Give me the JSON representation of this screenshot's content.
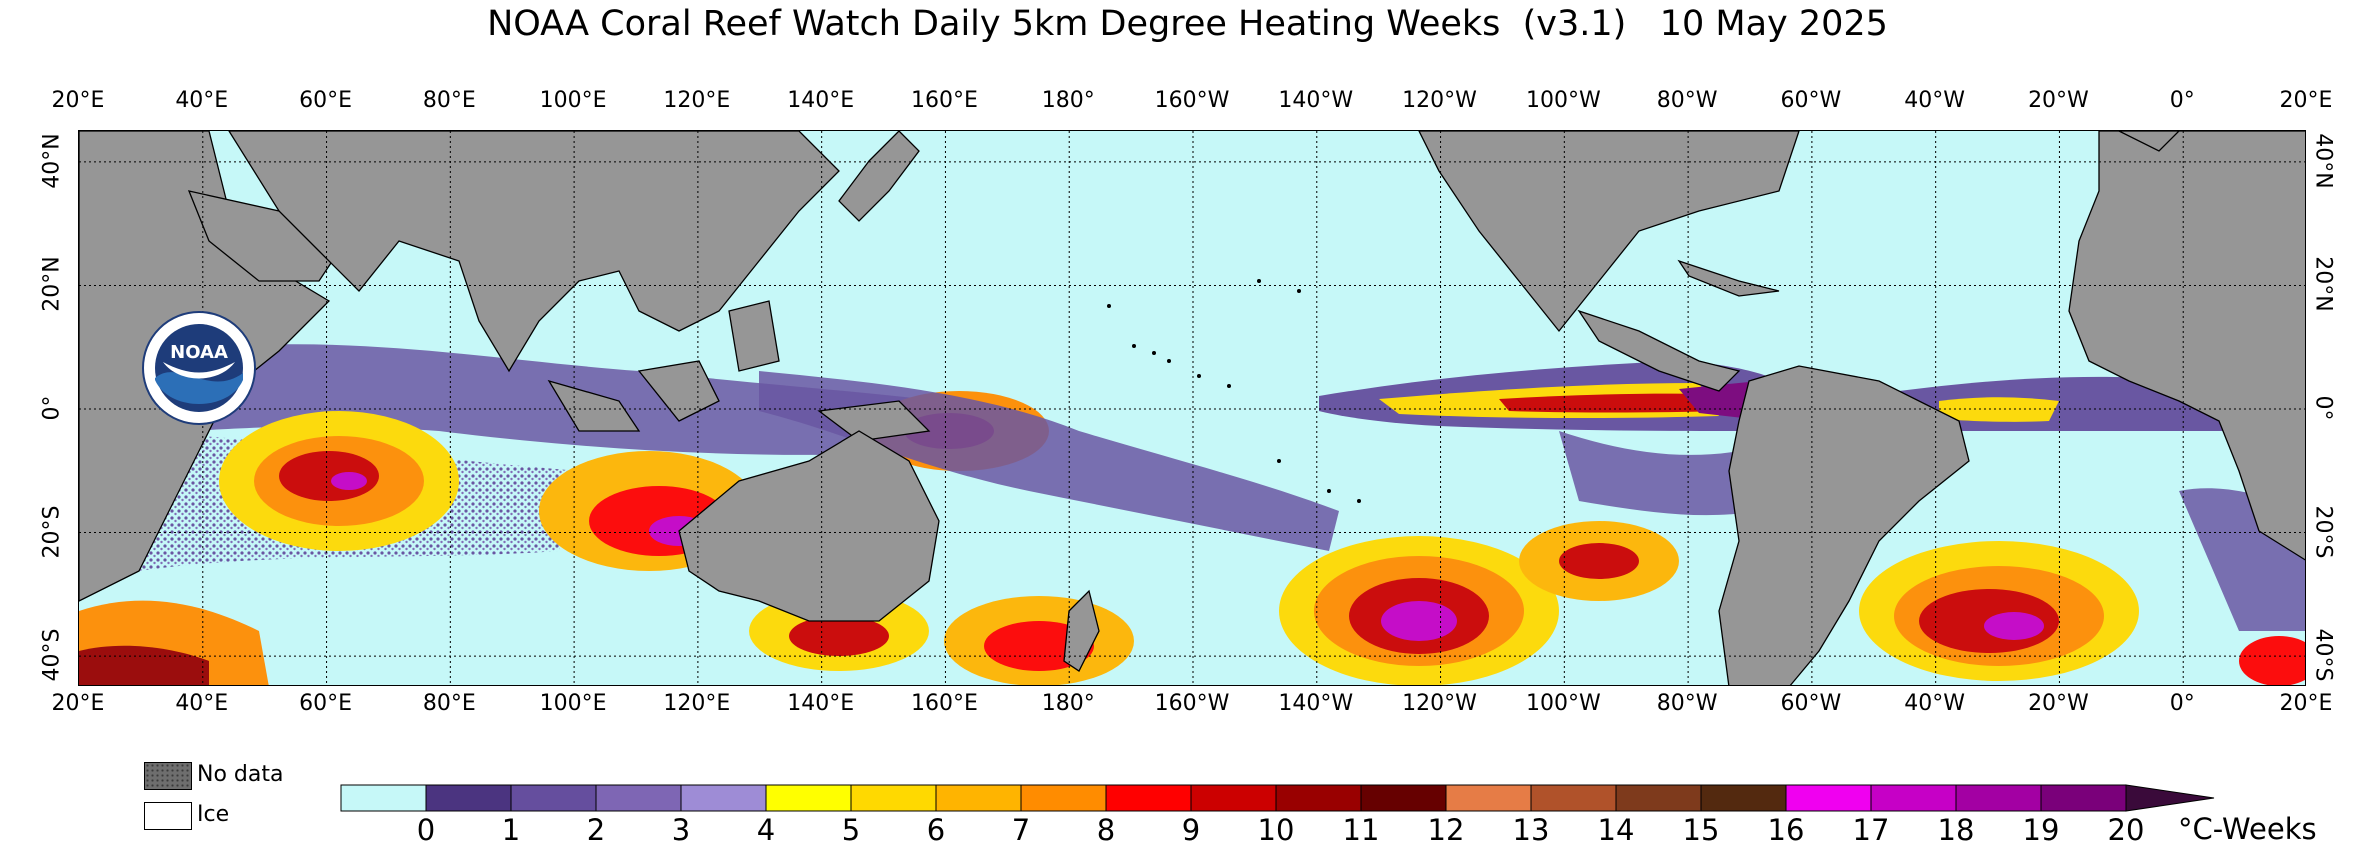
{
  "title": "NOAA Coral Reef Watch Daily 5km Degree Heating Weeks  (v3.1)   10 May 2025",
  "map": {
    "longitude_labels": [
      "20°E",
      "40°E",
      "60°E",
      "80°E",
      "100°E",
      "120°E",
      "140°E",
      "160°E",
      "180°",
      "160°W",
      "140°W",
      "120°W",
      "100°W",
      "80°W",
      "60°W",
      "40°W",
      "20°W",
      "0°",
      "20°E"
    ],
    "latitude_labels": [
      "40°N",
      "20°N",
      "0°",
      "20°S",
      "40°S"
    ],
    "extent": {
      "lon_start_east": 20,
      "lon_span_deg": 360,
      "lat_north": 45,
      "lat_south": -45
    },
    "colors": {
      "land": "#969696",
      "ocean_zero": "#c6f8f8",
      "grid": "#000000"
    }
  },
  "logo": {
    "text": "NOAA",
    "ring_text": "NATIONAL OCEANIC AND ATMOSPHERIC ADMINISTRATION · U.S. DEPARTMENT OF COMMERCE"
  },
  "legend": {
    "no_data_label": "No data",
    "ice_label": "Ice",
    "units": "°C-Weeks",
    "ticks": [
      "0",
      "1",
      "2",
      "3",
      "4",
      "5",
      "6",
      "7",
      "8",
      "9",
      "10",
      "11",
      "12",
      "13",
      "14",
      "15",
      "16",
      "17",
      "18",
      "19",
      "20"
    ],
    "colors": [
      "#c6f8f8",
      "#4b3480",
      "#654e9e",
      "#7e66b4",
      "#9e8cd6",
      "#ffff00",
      "#ffd900",
      "#ffb400",
      "#ff8c00",
      "#ff0000",
      "#cc0000",
      "#990000",
      "#660000",
      "#e67c46",
      "#b0522a",
      "#7e3a1c",
      "#53290f",
      "#f000f0",
      "#c600c6",
      "#a300a3",
      "#7a007a",
      "#3a0a3a"
    ]
  }
}
